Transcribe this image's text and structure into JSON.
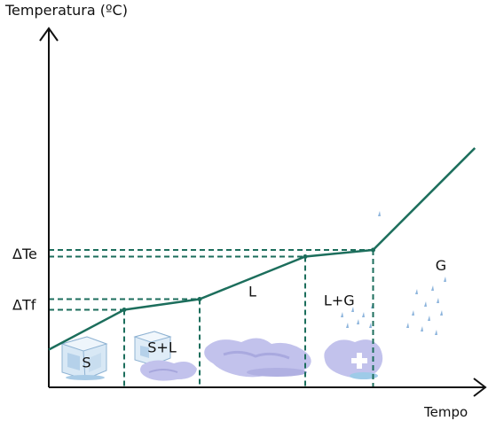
{
  "chart_data": {
    "type": "line",
    "title": "",
    "ylabel": "Temperatura (ºC)",
    "xlabel": "Tempo",
    "series": [
      {
        "points": [
          {
            "x": 0.0,
            "y": 1.7
          },
          {
            "x": 1.0,
            "y": 3.5
          },
          {
            "x": 2.0,
            "y": 3.98
          },
          {
            "x": 3.4,
            "y": 5.9
          },
          {
            "x": 4.3,
            "y": 6.2
          },
          {
            "x": 5.65,
            "y": 10.8
          }
        ]
      }
    ],
    "reference_levels": [
      {
        "label": "ΔTf",
        "y_low": 3.5,
        "y_high": 3.98
      },
      {
        "label": "ΔTe",
        "y_low": 5.9,
        "y_high": 6.2
      }
    ],
    "regions": [
      {
        "label": "S"
      },
      {
        "label": "S+L"
      },
      {
        "label": "L"
      },
      {
        "label": "L+G"
      },
      {
        "label": "G"
      }
    ],
    "colors": {
      "line": "#1c6e5c",
      "axis": "#111111",
      "ice": "#a9cbe6",
      "water": "#c2c2ec",
      "drop": "#8cb4dc"
    },
    "xlim": [
      0,
      6.1
    ],
    "ylim": [
      0,
      11
    ]
  }
}
